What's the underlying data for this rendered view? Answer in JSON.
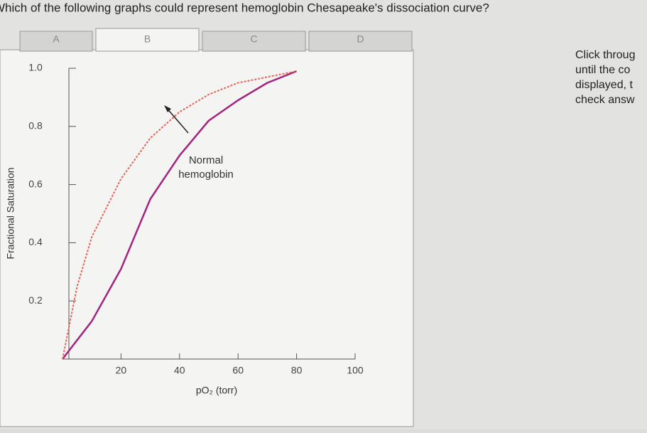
{
  "question": "Which of the following graphs could represent hemoglobin Chesapeake's dissociation curve?",
  "tabs": [
    "A",
    "B",
    "C",
    "D"
  ],
  "instructions": [
    "Click throug",
    "until the co",
    "displayed, t",
    "check answ"
  ],
  "chart_data": {
    "type": "line",
    "y_label": "Fractional Saturation",
    "x_label": "pO₂ (torr)",
    "annotation": [
      "Normal",
      "hemoglobin"
    ],
    "xlim": [
      0,
      100
    ],
    "ylim": [
      0,
      1
    ],
    "xticks": [
      20,
      40,
      60,
      80,
      100
    ],
    "yticks": [
      0.2,
      0.4,
      0.6,
      0.8,
      {
        "value": 1,
        "label": "1.0"
      }
    ],
    "series": [
      {
        "name": "Normal hemoglobin",
        "color": "#a3237f",
        "dashed": false,
        "x": [
          0,
          10,
          20,
          30,
          40,
          50,
          60,
          70,
          80
        ],
        "values": [
          0,
          0.13,
          0.31,
          0.55,
          0.7,
          0.82,
          0.89,
          0.95,
          0.99
        ]
      },
      {
        "name": "Chesapeake",
        "color": "#e8645a",
        "dashed": true,
        "x": [
          0,
          5,
          10,
          20,
          30,
          40,
          50,
          60,
          70,
          80
        ],
        "values": [
          0,
          0.25,
          0.42,
          0.62,
          0.76,
          0.85,
          0.91,
          0.95,
          0.97,
          0.99
        ]
      }
    ]
  }
}
